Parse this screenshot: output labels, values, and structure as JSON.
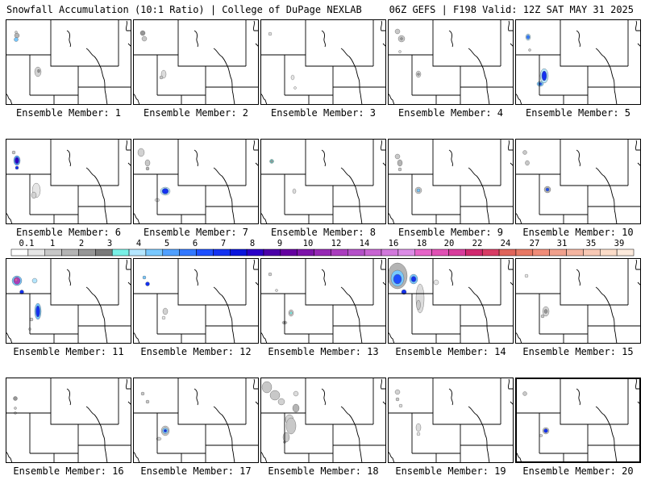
{
  "header": {
    "left_title": "Snowfall Accumulation (10:1 Ratio) | College of DuPage NEXLAB",
    "right_title": "06Z GEFS | F198 Valid: 12Z SAT MAY 31 2025"
  },
  "colorbar": {
    "labels": [
      "0.1",
      "1",
      "2",
      "3",
      "4",
      "5",
      "6",
      "7",
      "8",
      "9",
      "10",
      "12",
      "14",
      "16",
      "18",
      "20",
      "22",
      "24",
      "27",
      "31",
      "35",
      "39"
    ],
    "colors": [
      "#ffffff",
      "#e6e6e6",
      "#c8c8c8",
      "#b4b4b4",
      "#969696",
      "#7a7a7a",
      "#78f0e6",
      "#b4e6ff",
      "#78c8ff",
      "#50a0ff",
      "#3278ff",
      "#1e50ff",
      "#1432f0",
      "#0a14dc",
      "#2a00c8",
      "#4b00a8",
      "#6400a0",
      "#7d14aa",
      "#9628b4",
      "#aa3cbe",
      "#b450c8",
      "#c864d2",
      "#d278dc",
      "#dc8ce6",
      "#e664c8",
      "#e050b4",
      "#d83c9c",
      "#d0286e",
      "#d83c64",
      "#e0645a",
      "#e87864",
      "#f08c78",
      "#f0a08c",
      "#f4b4a0",
      "#f8c8b4",
      "#fcdcc8",
      "#fdeadc"
    ]
  },
  "members": [
    {
      "label": "Ensemble Member: 1",
      "frame": "normal",
      "blobs": [
        {
          "x": 14,
          "y": 20,
          "rx": 3,
          "ry": 3,
          "c": "#b4b4b4"
        },
        {
          "x": 13,
          "y": 25,
          "rx": 2.5,
          "ry": 2.5,
          "c": "#78c8ff"
        },
        {
          "x": 40,
          "y": 65,
          "rx": 4,
          "ry": 6,
          "c": "#d2d2d2"
        },
        {
          "x": 41,
          "y": 64,
          "rx": 1.5,
          "ry": 2,
          "c": "#969696"
        },
        {
          "x": 13,
          "y": 16,
          "rx": 1.5,
          "ry": 1.5,
          "c": "#c8c8c8"
        }
      ]
    },
    {
      "label": "Ensemble Member: 2",
      "frame": "normal",
      "blobs": [
        {
          "x": 12,
          "y": 17,
          "rx": 3,
          "ry": 3,
          "c": "#969696"
        },
        {
          "x": 14,
          "y": 24,
          "rx": 3,
          "ry": 3,
          "c": "#c8c8c8"
        },
        {
          "x": 38,
          "y": 68,
          "rx": 3,
          "ry": 5,
          "c": "#dcdcdc"
        },
        {
          "x": 35,
          "y": 72,
          "rx": 2,
          "ry": 2,
          "c": "#c8c8c8"
        }
      ]
    },
    {
      "label": "Ensemble Member: 3",
      "frame": "normal",
      "blobs": [
        {
          "x": 12,
          "y": 18,
          "rx": 2,
          "ry": 2,
          "c": "#e0e0e0"
        },
        {
          "x": 40,
          "y": 72,
          "rx": 2,
          "ry": 3,
          "c": "#e6e6e6"
        },
        {
          "x": 43,
          "y": 85,
          "rx": 1.5,
          "ry": 1.5,
          "c": "#e6e6e6"
        }
      ]
    },
    {
      "label": "Ensemble Member: 4",
      "frame": "normal",
      "blobs": [
        {
          "x": 12,
          "y": 15,
          "rx": 3,
          "ry": 3,
          "c": "#c8c8c8"
        },
        {
          "x": 17,
          "y": 24,
          "rx": 4,
          "ry": 4,
          "c": "#c8c8c8"
        },
        {
          "x": 17,
          "y": 24,
          "rx": 1.5,
          "ry": 1.5,
          "c": "#969696"
        },
        {
          "x": 38,
          "y": 68,
          "rx": 3,
          "ry": 4,
          "c": "#d2d2d2"
        },
        {
          "x": 38,
          "y": 68,
          "rx": 1.5,
          "ry": 1.5,
          "c": "#969696"
        },
        {
          "x": 15,
          "y": 40,
          "rx": 1.5,
          "ry": 1.5,
          "c": "#dcdcdc"
        }
      ]
    },
    {
      "label": "Ensemble Member: 5",
      "frame": "normal",
      "blobs": [
        {
          "x": 16,
          "y": 22,
          "rx": 3,
          "ry": 4,
          "c": "#b4e6ff"
        },
        {
          "x": 16,
          "y": 22,
          "rx": 2,
          "ry": 2.5,
          "c": "#3278ff"
        },
        {
          "x": 36,
          "y": 70,
          "rx": 5,
          "ry": 9,
          "c": "#b4e6ff"
        },
        {
          "x": 36,
          "y": 70,
          "rx": 3,
          "ry": 6,
          "c": "#1432f0"
        },
        {
          "x": 31,
          "y": 80,
          "rx": 4,
          "ry": 3,
          "c": "#78c8ff"
        },
        {
          "x": 31,
          "y": 80,
          "rx": 2,
          "ry": 1.5,
          "c": "#1e50ff"
        },
        {
          "x": 18,
          "y": 38,
          "rx": 1.5,
          "ry": 1.5,
          "c": "#c8c8c8"
        }
      ]
    },
    {
      "label": "Ensemble Member: 6",
      "frame": "normal",
      "blobs": [
        {
          "x": 14,
          "y": 27,
          "rx": 4,
          "ry": 6,
          "c": "#50a0ff"
        },
        {
          "x": 14,
          "y": 27,
          "rx": 2.5,
          "ry": 4,
          "c": "#2a00c8"
        },
        {
          "x": 14,
          "y": 36,
          "rx": 2,
          "ry": 2,
          "c": "#1432f0"
        },
        {
          "x": 10,
          "y": 17,
          "rx": 2,
          "ry": 2,
          "c": "#c8c8c8"
        },
        {
          "x": 38,
          "y": 64,
          "rx": 5,
          "ry": 9,
          "c": "#e6e6e6"
        },
        {
          "x": 35,
          "y": 70,
          "rx": 3,
          "ry": 4,
          "c": "#d2d2d2"
        }
      ]
    },
    {
      "label": "Ensemble Member: 7",
      "frame": "normal",
      "blobs": [
        {
          "x": 10,
          "y": 17,
          "rx": 4,
          "ry": 5,
          "c": "#d2d2d2"
        },
        {
          "x": 18,
          "y": 30,
          "rx": 3,
          "ry": 4,
          "c": "#c8c8c8"
        },
        {
          "x": 18,
          "y": 37,
          "rx": 2,
          "ry": 2,
          "c": "#b4b4b4"
        },
        {
          "x": 40,
          "y": 65,
          "rx": 6,
          "ry": 5,
          "c": "#b4e6ff"
        },
        {
          "x": 40,
          "y": 65,
          "rx": 4,
          "ry": 3.5,
          "c": "#1432f0"
        },
        {
          "x": 30,
          "y": 76,
          "rx": 3,
          "ry": 2,
          "c": "#dcdcdc"
        }
      ]
    },
    {
      "label": "Ensemble Member: 8",
      "frame": "normal",
      "blobs": [
        {
          "x": 14,
          "y": 28,
          "rx": 2.5,
          "ry": 2.5,
          "c": "#78f0e6"
        },
        {
          "x": 14,
          "y": 28,
          "rx": 1.5,
          "ry": 1.5,
          "c": "#969696"
        },
        {
          "x": 42,
          "y": 65,
          "rx": 2,
          "ry": 3,
          "c": "#dcdcdc"
        }
      ]
    },
    {
      "label": "Ensemble Member: 9",
      "frame": "normal",
      "blobs": [
        {
          "x": 12,
          "y": 22,
          "rx": 3,
          "ry": 3,
          "c": "#c8c8c8"
        },
        {
          "x": 15,
          "y": 30,
          "rx": 3,
          "ry": 4,
          "c": "#b4b4b4"
        },
        {
          "x": 15,
          "y": 38,
          "rx": 2,
          "ry": 2,
          "c": "#c8c8c8"
        },
        {
          "x": 38,
          "y": 64,
          "rx": 4,
          "ry": 4,
          "c": "#c8c8c8"
        },
        {
          "x": 38,
          "y": 64,
          "rx": 2,
          "ry": 2,
          "c": "#78c8ff"
        }
      ]
    },
    {
      "label": "Ensemble Member: 10",
      "frame": "normal",
      "blobs": [
        {
          "x": 12,
          "y": 17,
          "rx": 2.5,
          "ry": 2.5,
          "c": "#c8c8c8"
        },
        {
          "x": 15,
          "y": 30,
          "rx": 2.5,
          "ry": 3,
          "c": "#c8c8c8"
        },
        {
          "x": 40,
          "y": 63,
          "rx": 4,
          "ry": 4,
          "c": "#b4b4b4"
        },
        {
          "x": 40,
          "y": 63,
          "rx": 2,
          "ry": 2,
          "c": "#1e50ff"
        }
      ]
    },
    {
      "label": "Ensemble Member: 11",
      "frame": "normal",
      "blobs": [
        {
          "x": 14,
          "y": 28,
          "rx": 6,
          "ry": 6,
          "c": "#78c8ff"
        },
        {
          "x": 14,
          "y": 28,
          "rx": 4,
          "ry": 4.5,
          "c": "#aa3cbe"
        },
        {
          "x": 13,
          "y": 27,
          "rx": 2,
          "ry": 2,
          "c": "#e050b4"
        },
        {
          "x": 36,
          "y": 28,
          "rx": 3,
          "ry": 3,
          "c": "#b4e6ff"
        },
        {
          "x": 20,
          "y": 42,
          "rx": 2.5,
          "ry": 2.5,
          "c": "#1432f0"
        },
        {
          "x": 40,
          "y": 66,
          "rx": 4,
          "ry": 10,
          "c": "#78c8ff"
        },
        {
          "x": 40,
          "y": 66,
          "rx": 2.5,
          "ry": 7,
          "c": "#1432f0"
        },
        {
          "x": 32,
          "y": 76,
          "rx": 2,
          "ry": 2,
          "c": "#c8c8c8"
        },
        {
          "x": 30,
          "y": 88,
          "rx": 1.5,
          "ry": 1.5,
          "c": "#dcdcdc"
        }
      ]
    },
    {
      "label": "Ensemble Member: 12",
      "frame": "normal",
      "blobs": [
        {
          "x": 14,
          "y": 24,
          "rx": 2,
          "ry": 2,
          "c": "#78c8ff"
        },
        {
          "x": 18,
          "y": 32,
          "rx": 2.5,
          "ry": 2.5,
          "c": "#1432f0"
        },
        {
          "x": 40,
          "y": 66,
          "rx": 3,
          "ry": 4,
          "c": "#d2d2d2"
        },
        {
          "x": 38,
          "y": 74,
          "rx": 2,
          "ry": 2,
          "c": "#e6e6e6"
        }
      ]
    },
    {
      "label": "Ensemble Member: 13",
      "frame": "normal",
      "blobs": [
        {
          "x": 12,
          "y": 20,
          "rx": 2,
          "ry": 2,
          "c": "#d2d2d2"
        },
        {
          "x": 20,
          "y": 40,
          "rx": 1.5,
          "ry": 1.5,
          "c": "#dcdcdc"
        },
        {
          "x": 38,
          "y": 68,
          "rx": 3,
          "ry": 4,
          "c": "#c8c8c8"
        },
        {
          "x": 38,
          "y": 68,
          "rx": 1.5,
          "ry": 1.5,
          "c": "#78f0e6"
        },
        {
          "x": 30,
          "y": 80,
          "rx": 3,
          "ry": 2,
          "c": "#c8c8c8"
        },
        {
          "x": 30,
          "y": 80,
          "rx": 1.2,
          "ry": 1.2,
          "c": "#969696"
        }
      ]
    },
    {
      "label": "Ensemble Member: 14",
      "frame": "normal",
      "blobs": [
        {
          "x": 12,
          "y": 22,
          "rx": 12,
          "ry": 16,
          "c": "#b4b4b4"
        },
        {
          "x": 12,
          "y": 25,
          "rx": 8,
          "ry": 10,
          "c": "#78c8ff"
        },
        {
          "x": 12,
          "y": 26,
          "rx": 5,
          "ry": 6,
          "c": "#1e50ff"
        },
        {
          "x": 32,
          "y": 26,
          "rx": 5,
          "ry": 6,
          "c": "#78c8ff"
        },
        {
          "x": 32,
          "y": 26,
          "rx": 3,
          "ry": 3.5,
          "c": "#1432f0"
        },
        {
          "x": 20,
          "y": 42,
          "rx": 3,
          "ry": 3,
          "c": "#1432f0"
        },
        {
          "x": 40,
          "y": 50,
          "rx": 5,
          "ry": 18,
          "c": "#dcdcdc"
        },
        {
          "x": 38,
          "y": 58,
          "rx": 2.5,
          "ry": 6,
          "c": "#c8c8c8"
        },
        {
          "x": 60,
          "y": 30,
          "rx": 3,
          "ry": 3,
          "c": "#e6e6e6"
        }
      ]
    },
    {
      "label": "Ensemble Member: 15",
      "frame": "normal",
      "blobs": [
        {
          "x": 14,
          "y": 22,
          "rx": 2,
          "ry": 2,
          "c": "#e6e6e6"
        },
        {
          "x": 38,
          "y": 66,
          "rx": 4,
          "ry": 6,
          "c": "#d2d2d2"
        },
        {
          "x": 38,
          "y": 66,
          "rx": 2,
          "ry": 2.5,
          "c": "#969696"
        },
        {
          "x": 34,
          "y": 72,
          "rx": 2,
          "ry": 2,
          "c": "#c8c8c8"
        }
      ]
    },
    {
      "label": "Ensemble Member: 16",
      "frame": "normal",
      "blobs": [
        {
          "x": 12,
          "y": 26,
          "rx": 2.5,
          "ry": 2.5,
          "c": "#969696"
        },
        {
          "x": 12,
          "y": 38,
          "rx": 1.5,
          "ry": 1.5,
          "c": "#c8c8c8"
        },
        {
          "x": 12,
          "y": 44,
          "rx": 1.5,
          "ry": 1.5,
          "c": "#dcdcdc"
        }
      ]
    },
    {
      "label": "Ensemble Member: 17",
      "frame": "normal",
      "blobs": [
        {
          "x": 12,
          "y": 20,
          "rx": 2,
          "ry": 2,
          "c": "#c8c8c8"
        },
        {
          "x": 18,
          "y": 30,
          "rx": 2,
          "ry": 2,
          "c": "#c8c8c8"
        },
        {
          "x": 40,
          "y": 66,
          "rx": 5,
          "ry": 6,
          "c": "#c8c8c8"
        },
        {
          "x": 40,
          "y": 66,
          "rx": 3.5,
          "ry": 3.5,
          "c": "#78c8ff"
        },
        {
          "x": 40,
          "y": 66,
          "rx": 1.8,
          "ry": 1.8,
          "c": "#1432f0"
        },
        {
          "x": 32,
          "y": 76,
          "rx": 3,
          "ry": 2,
          "c": "#d2d2d2"
        }
      ]
    },
    {
      "label": "Ensemble Member: 18",
      "frame": "normal",
      "blobs": [
        {
          "x": 8,
          "y": 12,
          "rx": 6,
          "ry": 7,
          "c": "#c8c8c8"
        },
        {
          "x": 18,
          "y": 22,
          "rx": 6,
          "ry": 6,
          "c": "#c8c8c8"
        },
        {
          "x": 26,
          "y": 30,
          "rx": 4,
          "ry": 4,
          "c": "#d2d2d2"
        },
        {
          "x": 44,
          "y": 38,
          "rx": 4,
          "ry": 5,
          "c": "#b4b4b4"
        },
        {
          "x": 36,
          "y": 52,
          "rx": 5,
          "ry": 6,
          "c": "#d2d2d2"
        },
        {
          "x": 38,
          "y": 60,
          "rx": 6,
          "ry": 10,
          "c": "#c8c8c8"
        },
        {
          "x": 32,
          "y": 74,
          "rx": 4,
          "ry": 6,
          "c": "#c8c8c8"
        },
        {
          "x": 30,
          "y": 80,
          "rx": 1.5,
          "ry": 1.5,
          "c": "#969696"
        },
        {
          "x": 44,
          "y": 20,
          "rx": 3,
          "ry": 3,
          "c": "#dcdcdc"
        }
      ]
    },
    {
      "label": "Ensemble Member: 19",
      "frame": "normal",
      "blobs": [
        {
          "x": 12,
          "y": 18,
          "rx": 3,
          "ry": 3,
          "c": "#d2d2d2"
        },
        {
          "x": 12,
          "y": 27,
          "rx": 2,
          "ry": 2,
          "c": "#c8c8c8"
        },
        {
          "x": 16,
          "y": 35,
          "rx": 2,
          "ry": 2,
          "c": "#dcdcdc"
        },
        {
          "x": 38,
          "y": 62,
          "rx": 3,
          "ry": 5,
          "c": "#dcdcdc"
        },
        {
          "x": 38,
          "y": 70,
          "rx": 2,
          "ry": 2,
          "c": "#e6e6e6"
        }
      ]
    },
    {
      "label": "Ensemble Member: 20",
      "frame": "thick",
      "blobs": [
        {
          "x": 12,
          "y": 20,
          "rx": 2.5,
          "ry": 2.5,
          "c": "#c8c8c8"
        },
        {
          "x": 38,
          "y": 66,
          "rx": 4,
          "ry": 4,
          "c": "#c8c8c8"
        },
        {
          "x": 38,
          "y": 66,
          "rx": 2.5,
          "ry": 2.5,
          "c": "#1432f0"
        },
        {
          "x": 32,
          "y": 72,
          "rx": 2,
          "ry": 1.5,
          "c": "#d2d2d2"
        }
      ]
    }
  ]
}
